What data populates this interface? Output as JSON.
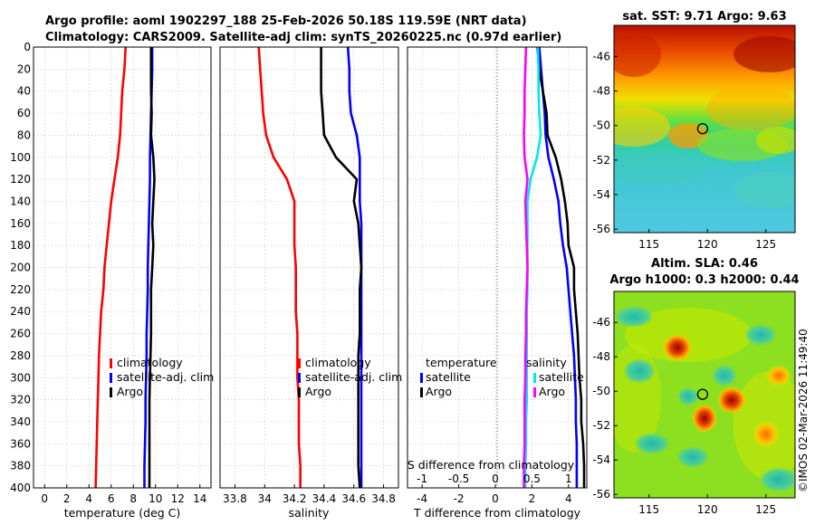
{
  "header": {
    "line1": "Argo profile: aoml 1902297_188 25-Feb-2026 50.18S 119.59E (NRT data)",
    "line2": "Climatology: CARS2009. Satellite-adj clim: synTS_20260225.nc (0.97d earlier)"
  },
  "side_stamp": "©IMOS 02-Mar-2026 11:49:40",
  "chart_data": [
    {
      "type": "line",
      "id": "temperature",
      "xlabel": "temperature (deg C)",
      "ylabel": "",
      "xlim": [
        -1,
        15
      ],
      "ylim": [
        400,
        0
      ],
      "xticks": [
        0,
        2,
        4,
        6,
        8,
        10,
        12,
        14
      ],
      "xtick_labels": [
        "0",
        "2",
        "4",
        "6",
        "8",
        "10",
        "12",
        "14"
      ],
      "yticks": [
        0,
        20,
        40,
        60,
        80,
        100,
        120,
        140,
        160,
        180,
        200,
        220,
        240,
        260,
        280,
        300,
        320,
        340,
        360,
        380,
        400
      ],
      "legend": [
        "climatology",
        "satellite-adj. clim",
        "Argo"
      ],
      "series": [
        {
          "name": "climatology",
          "color": "#ff0000",
          "x": [
            7.3,
            7.2,
            7.0,
            6.9,
            6.8,
            6.6,
            6.3,
            6.0,
            5.8,
            5.6,
            5.4,
            5.3,
            5.1,
            5.0,
            4.9,
            4.85,
            4.8,
            4.75,
            4.7,
            4.65,
            4.6
          ],
          "y": [
            0,
            20,
            40,
            60,
            80,
            100,
            120,
            140,
            160,
            180,
            200,
            220,
            240,
            260,
            280,
            300,
            320,
            340,
            360,
            380,
            400
          ]
        },
        {
          "name": "satellite-adj. clim",
          "color": "#0000ff",
          "x": [
            9.7,
            9.7,
            9.65,
            9.6,
            9.55,
            9.5,
            9.5,
            9.45,
            9.4,
            9.35,
            9.3,
            9.3,
            9.25,
            9.2,
            9.2,
            9.15,
            9.1,
            9.1,
            9.05,
            9.0,
            9.0
          ],
          "y": [
            0,
            20,
            40,
            60,
            80,
            100,
            120,
            140,
            160,
            180,
            200,
            220,
            240,
            260,
            280,
            300,
            320,
            340,
            360,
            380,
            400
          ]
        },
        {
          "name": "Argo",
          "color": "#000000",
          "x": [
            9.6,
            9.6,
            9.6,
            9.65,
            9.6,
            9.8,
            9.9,
            9.8,
            9.7,
            9.8,
            9.7,
            9.6,
            9.6,
            9.6,
            9.55,
            9.5,
            9.45,
            9.45,
            9.45,
            9.45,
            9.45
          ],
          "y": [
            0,
            20,
            40,
            60,
            80,
            100,
            120,
            140,
            160,
            180,
            200,
            220,
            240,
            260,
            280,
            300,
            320,
            340,
            360,
            380,
            400
          ]
        }
      ]
    },
    {
      "type": "line",
      "id": "salinity",
      "xlabel": "salinity",
      "xlim": [
        33.7,
        34.9
      ],
      "ylim": [
        400,
        0
      ],
      "xticks": [
        33.8,
        34.0,
        34.2,
        34.4,
        34.6,
        34.8
      ],
      "xtick_labels": [
        "33.8",
        "34",
        "34.2",
        "34.4",
        "34.6",
        "34.8"
      ],
      "legend": [
        "climatology",
        "satellite-adj. clim",
        "Argo"
      ],
      "series": [
        {
          "name": "climatology",
          "color": "#ff0000",
          "x": [
            33.96,
            33.97,
            33.98,
            33.99,
            34.01,
            34.06,
            34.15,
            34.2,
            34.2,
            34.2,
            34.21,
            34.21,
            34.21,
            34.22,
            34.22,
            34.22,
            34.23,
            34.23,
            34.23,
            34.24,
            34.24
          ],
          "y": [
            0,
            20,
            40,
            60,
            80,
            100,
            120,
            140,
            160,
            180,
            200,
            220,
            240,
            260,
            280,
            300,
            320,
            340,
            360,
            380,
            400
          ]
        },
        {
          "name": "satellite-adj. clim",
          "color": "#0000ff",
          "x": [
            34.56,
            34.57,
            34.57,
            34.58,
            34.62,
            34.64,
            34.64,
            34.64,
            34.65,
            34.65,
            34.65,
            34.65,
            34.65,
            34.65,
            34.65,
            34.65,
            34.65,
            34.65,
            34.65,
            34.65,
            34.65
          ],
          "y": [
            0,
            20,
            40,
            60,
            80,
            100,
            120,
            140,
            160,
            180,
            200,
            220,
            240,
            260,
            280,
            300,
            320,
            340,
            360,
            380,
            400
          ]
        },
        {
          "name": "Argo",
          "color": "#000000",
          "x": [
            34.38,
            34.38,
            34.38,
            34.39,
            34.4,
            34.48,
            34.62,
            34.6,
            34.63,
            34.64,
            34.65,
            34.64,
            34.64,
            34.64,
            34.63,
            34.63,
            34.63,
            34.63,
            34.63,
            34.63,
            34.64
          ],
          "y": [
            0,
            20,
            40,
            60,
            80,
            100,
            120,
            140,
            160,
            180,
            200,
            220,
            240,
            260,
            280,
            300,
            320,
            340,
            360,
            380,
            400
          ]
        }
      ]
    },
    {
      "type": "line",
      "id": "difference",
      "xlabel": "T difference from climatology",
      "top_xlabel": "S difference from climatology",
      "xlim": [
        -4.8,
        5.0
      ],
      "top_xlim": [
        -1.2,
        1.25
      ],
      "ylim": [
        400,
        0
      ],
      "xticks": [
        -4,
        -2,
        0,
        2,
        4
      ],
      "xtick_labels": [
        "-4",
        "-2",
        "0",
        "2",
        "4"
      ],
      "top_xticks": [
        -1,
        -0.5,
        0,
        0.5,
        1
      ],
      "top_xtick_labels": [
        "-1",
        "-0.5",
        "0",
        "0.5",
        "1"
      ],
      "legend_left_title": "temperature",
      "legend_right_title": "salinity",
      "legend_left": [
        "satellite",
        "Argo"
      ],
      "legend_right": [
        "satellite",
        "Argo"
      ],
      "series": [
        {
          "name": "temperature satellite",
          "axis": "T",
          "color": "#0000ff",
          "x": [
            2.4,
            2.5,
            2.6,
            2.7,
            2.75,
            2.9,
            3.2,
            3.45,
            3.55,
            3.7,
            3.9,
            4.0,
            4.1,
            4.2,
            4.3,
            4.35,
            4.4,
            4.4,
            4.45,
            4.45,
            4.45
          ],
          "y": [
            0,
            20,
            40,
            60,
            80,
            100,
            120,
            140,
            160,
            180,
            200,
            220,
            240,
            260,
            280,
            300,
            320,
            340,
            360,
            380,
            400
          ]
        },
        {
          "name": "temperature Argo",
          "axis": "T",
          "color": "#000000",
          "x": [
            2.3,
            2.4,
            2.6,
            2.8,
            2.85,
            3.3,
            3.6,
            3.8,
            3.95,
            4.0,
            4.3,
            4.3,
            4.4,
            4.5,
            4.55,
            4.6,
            4.7,
            4.7,
            4.8,
            4.85,
            4.85
          ],
          "y": [
            0,
            20,
            40,
            60,
            80,
            100,
            120,
            140,
            160,
            180,
            200,
            220,
            240,
            260,
            280,
            300,
            320,
            340,
            360,
            380,
            400
          ]
        },
        {
          "name": "salinity satellite",
          "axis": "S",
          "color": "#00e5ee",
          "x": [
            0.58,
            0.59,
            0.59,
            0.6,
            0.62,
            0.57,
            0.48,
            0.44,
            0.44,
            0.44,
            0.44,
            0.44,
            0.43,
            0.43,
            0.43,
            0.43,
            0.43,
            0.42,
            0.42,
            0.41,
            0.41
          ],
          "y": [
            0,
            20,
            40,
            60,
            80,
            100,
            120,
            140,
            160,
            180,
            200,
            220,
            240,
            260,
            280,
            300,
            320,
            340,
            360,
            380,
            400
          ]
        },
        {
          "name": "salinity Argo",
          "axis": "S",
          "color": "#ff00ff",
          "x": [
            0.42,
            0.41,
            0.4,
            0.4,
            0.39,
            0.4,
            0.44,
            0.41,
            0.42,
            0.43,
            0.44,
            0.43,
            0.42,
            0.42,
            0.41,
            0.41,
            0.4,
            0.4,
            0.4,
            0.39,
            0.39
          ],
          "y": [
            0,
            20,
            40,
            60,
            80,
            100,
            120,
            140,
            160,
            180,
            200,
            220,
            240,
            260,
            280,
            300,
            320,
            340,
            360,
            380,
            400
          ]
        }
      ]
    },
    {
      "type": "heatmap",
      "id": "sst-map",
      "title": "sat. SST: 9.71 Argo: 9.63",
      "xlim": [
        112,
        127.5
      ],
      "ylim": [
        -56.2,
        -44.2
      ],
      "xticks": [
        115,
        120,
        125
      ],
      "xtick_labels": [
        "115",
        "120",
        "125"
      ],
      "yticks": [
        -46,
        -48,
        -50,
        -52,
        -54,
        -56
      ],
      "ytick_labels": [
        "-46",
        "-48",
        "-50",
        "-52",
        "-54",
        "-56"
      ],
      "marker": {
        "lon": 119.59,
        "lat": -50.18
      }
    },
    {
      "type": "heatmap",
      "id": "sla-map",
      "title": "Altim. SLA: 0.46",
      "subtitle": "Argo h1000: 0.3 h2000: 0.44",
      "xlim": [
        112,
        127.5
      ],
      "ylim": [
        -56.2,
        -44.2
      ],
      "xticks": [
        115,
        120,
        125
      ],
      "xtick_labels": [
        "115",
        "120",
        "125"
      ],
      "yticks": [
        -46,
        -48,
        -50,
        -52,
        -54,
        -56
      ],
      "ytick_labels": [
        "-46",
        "-48",
        "-50",
        "-52",
        "-54",
        "-56"
      ],
      "marker": {
        "lon": 119.59,
        "lat": -50.18
      }
    }
  ]
}
